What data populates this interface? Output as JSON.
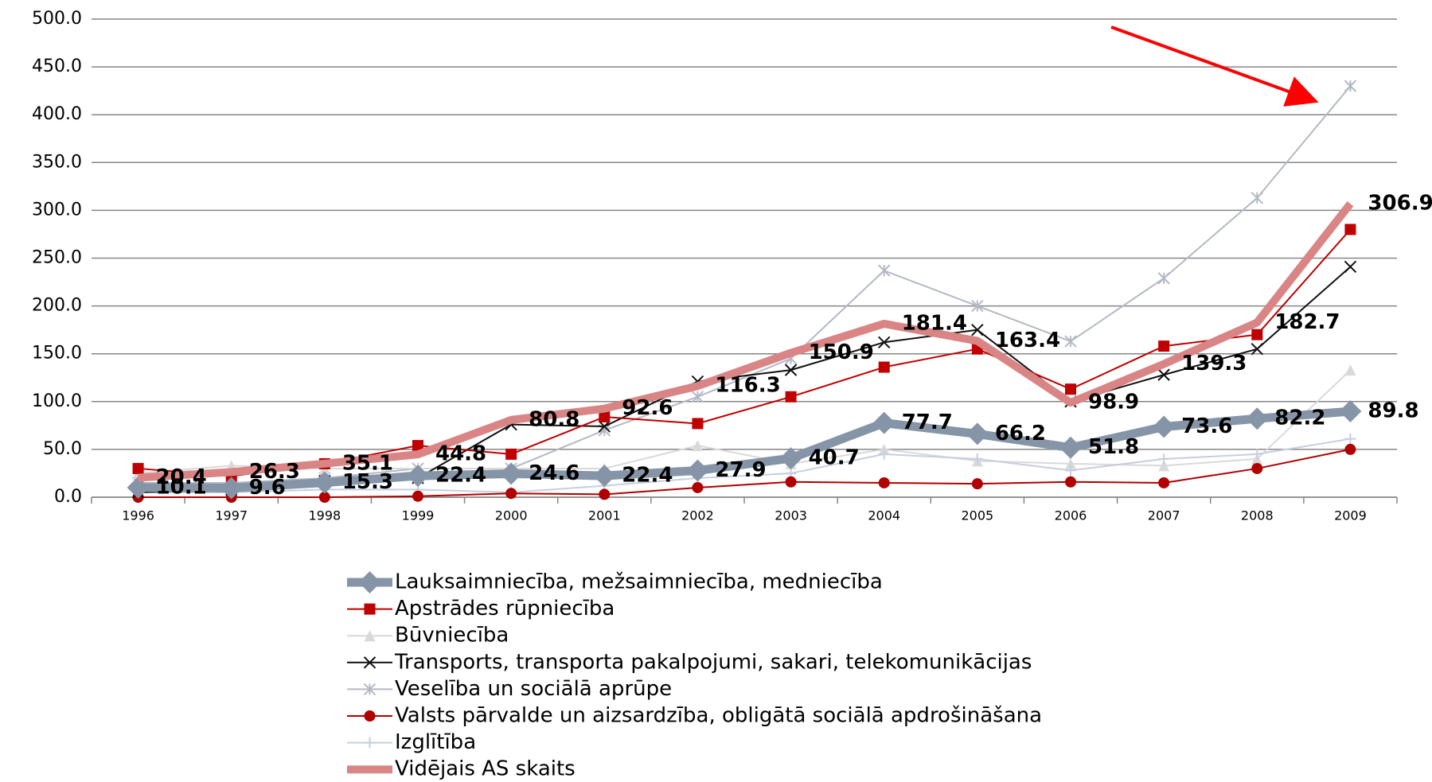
{
  "chart_data": {
    "type": "line",
    "categories": [
      "1996",
      "1997",
      "1998",
      "1999",
      "2000",
      "2001",
      "2002",
      "2003",
      "2004",
      "2005",
      "2006",
      "2007",
      "2008",
      "2009"
    ],
    "ylim": [
      0,
      500
    ],
    "yticks": [
      {
        "value": 0,
        "label": "0.0"
      },
      {
        "value": 50,
        "label": "50.0"
      },
      {
        "value": 100,
        "label": "100.0"
      },
      {
        "value": 150,
        "label": "150.0"
      },
      {
        "value": 200,
        "label": "200.0"
      },
      {
        "value": 250,
        "label": "250.0"
      },
      {
        "value": 300,
        "label": "300.0"
      },
      {
        "value": 350,
        "label": "350.0"
      },
      {
        "value": 400,
        "label": "400.0"
      },
      {
        "value": 450,
        "label": "450.0"
      },
      {
        "value": 500,
        "label": "500.0"
      }
    ],
    "grid": true,
    "series": [
      {
        "name": "Veselība un sociālā aprūpe",
        "color": "#b3b9c4",
        "marker": "asterisk",
        "width": 2,
        "values": [
          15,
          15,
          20,
          30,
          30,
          70,
          105,
          145,
          237,
          200,
          163,
          229,
          313,
          430
        ]
      },
      {
        "name": "Būvniecība",
        "color": "#d9d9d9",
        "marker": "triangle",
        "width": 2,
        "values": [
          25,
          33,
          30,
          30,
          30,
          30,
          54,
          35,
          50,
          38,
          35,
          33,
          40,
          133
        ]
      },
      {
        "name": "Izglītība",
        "color": "#c5cfe0",
        "marker": "plus",
        "width": 2,
        "values": [
          5,
          5,
          8,
          8,
          5,
          12,
          20,
          25,
          45,
          40,
          28,
          40,
          45,
          61
        ]
      },
      {
        "name": "Valsts pārvalde un aizsardzība, obligātā sociālā apdrošināšana",
        "color": "#b00000",
        "marker": "circle",
        "width": 2,
        "values": [
          0,
          0,
          0,
          1,
          4,
          3,
          10,
          16,
          15,
          14,
          16,
          15,
          30,
          50
        ]
      },
      {
        "name": "Transports, transporta pakalpojumi, sakari, telekomunikācijas",
        "color": "#111111",
        "marker": "x",
        "width": 2,
        "values": [
          5,
          8,
          17,
          20,
          76,
          74,
          121,
          133,
          162,
          175,
          100,
          128,
          155,
          241
        ]
      },
      {
        "name": "Apstrādes rūpniecība",
        "color": "#c00000",
        "marker": "square",
        "width": 2,
        "values": [
          30,
          22,
          35,
          54,
          45,
          84,
          77,
          105,
          136,
          155,
          113,
          158,
          170,
          280
        ]
      },
      {
        "name": "Lauksaimniecība, mežsaimniecība, medniecība",
        "color": "#8595a7",
        "marker": "diamond",
        "width": 11,
        "labels": true,
        "values": [
          10.1,
          9.6,
          15.3,
          22.4,
          24.6,
          22.4,
          27.9,
          40.7,
          77.7,
          66.2,
          51.8,
          73.6,
          82.2,
          89.8
        ]
      },
      {
        "name": "Vidējais AS skaits",
        "color": "#d98585",
        "marker": "none",
        "width": 10,
        "labels": true,
        "values": [
          20.4,
          26.3,
          35.1,
          44.8,
          80.8,
          92.6,
          116.3,
          150.9,
          181.4,
          163.4,
          98.9,
          139.3,
          182.7,
          306.9
        ]
      }
    ],
    "legend_order": [
      6,
      5,
      1,
      4,
      0,
      3,
      2,
      7
    ]
  }
}
